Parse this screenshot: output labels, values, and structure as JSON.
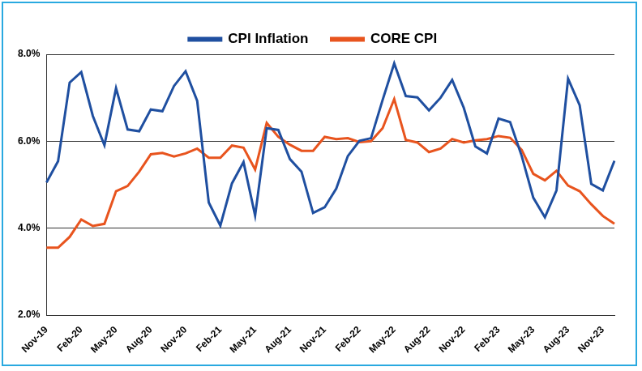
{
  "chart_data": {
    "type": "line",
    "categories": [
      "Nov-19",
      null,
      null,
      "Feb-20",
      null,
      null,
      "May-20",
      null,
      null,
      "Aug-20",
      null,
      null,
      "Nov-20",
      null,
      null,
      "Feb-21",
      null,
      null,
      "May-21",
      null,
      null,
      "Aug-21",
      null,
      null,
      "Nov-21",
      null,
      null,
      "Feb-22",
      null,
      null,
      "May-22",
      null,
      null,
      "Aug-22",
      null,
      null,
      "Nov-22",
      null,
      null,
      "Feb-23",
      null,
      null,
      "May-23",
      null,
      null,
      "Aug-23",
      null,
      null,
      "Nov-23",
      null
    ],
    "series": [
      {
        "name": "CPI Inflation",
        "color": "#1f4fa0",
        "values": [
          5.05,
          5.54,
          7.35,
          7.59,
          6.58,
          5.91,
          7.22,
          6.27,
          6.23,
          6.73,
          6.69,
          7.27,
          7.61,
          6.93,
          4.59,
          4.06,
          5.03,
          5.52,
          4.29,
          6.3,
          6.26,
          5.59,
          5.3,
          4.35,
          4.48,
          4.91,
          5.66,
          6.01,
          6.07,
          6.95,
          7.79,
          7.04,
          7.01,
          6.71,
          7.0,
          7.41,
          6.77,
          5.88,
          5.72,
          6.52,
          6.44,
          5.66,
          4.7,
          4.25,
          4.87,
          7.44,
          6.83,
          5.02,
          4.87,
          5.55
        ]
      },
      {
        "name": "CORE CPI",
        "color": "#e8541e",
        "values": [
          3.55,
          3.55,
          3.8,
          4.2,
          4.05,
          4.1,
          4.85,
          4.97,
          5.3,
          5.7,
          5.73,
          5.65,
          5.72,
          5.83,
          5.62,
          5.62,
          5.9,
          5.85,
          5.35,
          6.42,
          6.1,
          5.92,
          5.78,
          5.78,
          6.1,
          6.05,
          6.07,
          5.98,
          6.0,
          6.3,
          6.97,
          6.03,
          5.97,
          5.75,
          5.83,
          6.05,
          5.97,
          6.02,
          6.05,
          6.12,
          6.08,
          5.8,
          5.25,
          5.1,
          5.32,
          4.98,
          4.85,
          4.55,
          4.28,
          4.1
        ]
      }
    ],
    "ylim": [
      2,
      8
    ],
    "yticks": [
      {
        "value": 2,
        "label": "2.0%"
      },
      {
        "value": 4,
        "label": "4.0%"
      },
      {
        "value": 6,
        "label": "6.0%"
      },
      {
        "value": 8,
        "label": "8.0%"
      }
    ],
    "grid": true,
    "legend": "top"
  }
}
